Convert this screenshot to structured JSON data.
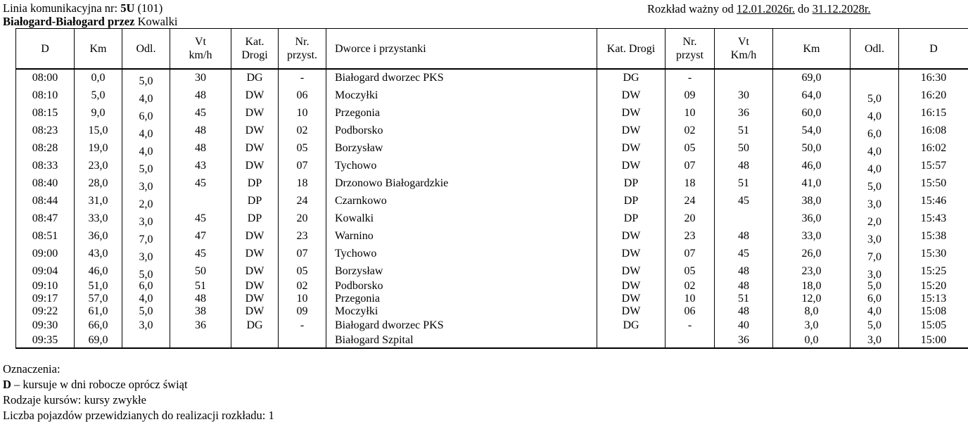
{
  "colors": {
    "text": "#000000",
    "background": "#ffffff",
    "border": "#000000"
  },
  "title": {
    "line_prefix": "Linia komunikacyjna nr: ",
    "line_number": "5U",
    "line_suffix": " (101)",
    "route_bold": "Białogard-Białogard przez",
    "route_rest": " Kowalki"
  },
  "validity": {
    "prefix": "Rozkład ważny od ",
    "from_date": "12.01.2026r.",
    "middle": " do ",
    "to_date": "31.12.2028r."
  },
  "table": {
    "header_cells": [
      {
        "text": "D",
        "bold": true
      },
      {
        "text": "Km"
      },
      {
        "text": "Odl."
      },
      {
        "text": "Vt\nkm/h"
      },
      {
        "text": "Kat.\nDrogi"
      },
      {
        "text": "Nr.\nprzyst."
      },
      {
        "text": "Dworce i przystanki",
        "station": true
      },
      {
        "text": "Kat. Drogi"
      },
      {
        "text": "Nr.\nprzyst"
      },
      {
        "text": "Vt\nKm/h"
      },
      {
        "text": "Km"
      },
      {
        "text": "Odl."
      },
      {
        "text": "D",
        "bold": true
      }
    ],
    "column_names": [
      "dep-time",
      "km-out",
      "dist-out",
      "speed-out",
      "road-cat-out",
      "stop-no-out",
      "station-name",
      "road-cat-ret",
      "stop-no-ret",
      "speed-ret",
      "km-ret",
      "dist-ret",
      "ret-time"
    ],
    "rows": [
      {
        "cells": [
          "08:00",
          "0,0",
          "5,0",
          "30",
          "DG",
          "-",
          "Białogard dworzec PKS",
          "DG",
          "-",
          "",
          "69,0",
          "",
          "16:30"
        ],
        "station_bold": true,
        "loose": true
      },
      {
        "cells": [
          "08:10",
          "5,0",
          "4,0",
          "48",
          "DW",
          "06",
          "Moczyłki",
          "DW",
          "09",
          "30",
          "64,0",
          "5,0",
          "16:20"
        ],
        "station_bold": false,
        "loose": true
      },
      {
        "cells": [
          "08:15",
          "9,0",
          "6,0",
          "45",
          "DW",
          "10",
          "Przegonia",
          "DW",
          "10",
          "36",
          "60,0",
          "4,0",
          "16:15"
        ],
        "station_bold": false,
        "loose": true
      },
      {
        "cells": [
          "08:23",
          "15,0",
          "4,0",
          "48",
          "DW",
          "02",
          "Podborsko",
          "DW",
          "02",
          "51",
          "54,0",
          "6,0",
          "16:08"
        ],
        "station_bold": false,
        "loose": true
      },
      {
        "cells": [
          "08:28",
          "19,0",
          "4,0",
          "48",
          "DW",
          "05",
          "Borzysław",
          "DW",
          "05",
          "50",
          "50,0",
          "4,0",
          "16:02"
        ],
        "station_bold": false,
        "loose": true
      },
      {
        "cells": [
          "08:33",
          "23,0",
          "5,0",
          "43",
          "DW",
          "07",
          "Tychowo",
          "DW",
          "07",
          "48",
          "46,0",
          "4,0",
          "15:57"
        ],
        "station_bold": false,
        "loose": true
      },
      {
        "cells": [
          "08:40",
          "28,0",
          "3,0",
          "45",
          "DP",
          "18",
          "Drzonowo Białogardzkie",
          "DP",
          "18",
          "51",
          "41,0",
          "5,0",
          "15:50"
        ],
        "station_bold": false,
        "loose": true
      },
      {
        "cells": [
          "08:44",
          "31,0",
          "2,0",
          "",
          "DP",
          "24",
          "Czarnkowo",
          "DP",
          "24",
          "45",
          "38,0",
          "3,0",
          "15:46"
        ],
        "station_bold": false,
        "loose": true
      },
      {
        "cells": [
          "08:47",
          "33,0",
          "3,0",
          "45",
          "DP",
          "20",
          "Kowalki",
          "DP",
          "20",
          "",
          "36,0",
          "2,0",
          "15:43"
        ],
        "station_bold": false,
        "loose": true
      },
      {
        "cells": [
          "08:51",
          "36,0",
          "7,0",
          "47",
          "DW",
          "23",
          "Warnino",
          "DW",
          "23",
          "48",
          "33,0",
          "3,0",
          "15:38"
        ],
        "station_bold": false,
        "loose": true
      },
      {
        "cells": [
          "09:00",
          "43,0",
          "3,0",
          "45",
          "DW",
          "07",
          "Tychowo",
          "DW",
          "07",
          "45",
          "26,0",
          "7,0",
          "15:30"
        ],
        "station_bold": false,
        "loose": true
      },
      {
        "cells": [
          "09:04",
          "46,0",
          "5,0",
          "50",
          "DW",
          "05",
          "Borzysław",
          "DW",
          "05",
          "48",
          "23,0",
          "3,0",
          "15:25"
        ],
        "station_bold": false,
        "loose": true
      },
      {
        "cells": [
          "09:10",
          "51,0",
          "6,0",
          "51",
          "DW",
          "02",
          "Podborsko",
          "DW",
          "02",
          "48",
          "18,0",
          "5,0",
          "15:20"
        ],
        "station_bold": false,
        "loose": false
      },
      {
        "cells": [
          "09:17",
          "57,0",
          "4,0",
          "48",
          "DW",
          "10",
          "Przegonia",
          "DW",
          "10",
          "51",
          "12,0",
          "6,0",
          "15:13"
        ],
        "station_bold": false,
        "loose": false
      },
      {
        "cells": [
          "09:22",
          "61,0",
          "5,0",
          "38",
          "DW",
          "09",
          "Moczyłki",
          "DW",
          "06",
          "48",
          "8,0",
          "4,0",
          "15:08"
        ],
        "station_bold": false,
        "loose": false
      },
      {
        "cells": [
          "09:30",
          "66,0",
          "3,0",
          "36",
          "DG",
          "-",
          "Białogard dworzec PKS",
          "DG",
          "-",
          "40",
          "3,0",
          "5,0",
          "15:05"
        ],
        "station_bold": true,
        "loose": false
      },
      {
        "cells": [
          "09:35",
          "69,0",
          "",
          "",
          "",
          "",
          "Białogard Szpital",
          "",
          "",
          "36",
          "0,0",
          "3,0",
          "15:00"
        ],
        "station_bold": true,
        "loose": false
      }
    ]
  },
  "legend": {
    "heading": "Oznaczenia:",
    "symbol": "D",
    "symbol_text": " – kursuje w dni robocze oprócz świąt",
    "line3": "Rodzaje kursów: kursy zwykłe",
    "line4": "Liczba pojazdów przewidzianych do realizacji rozkładu: 1"
  }
}
